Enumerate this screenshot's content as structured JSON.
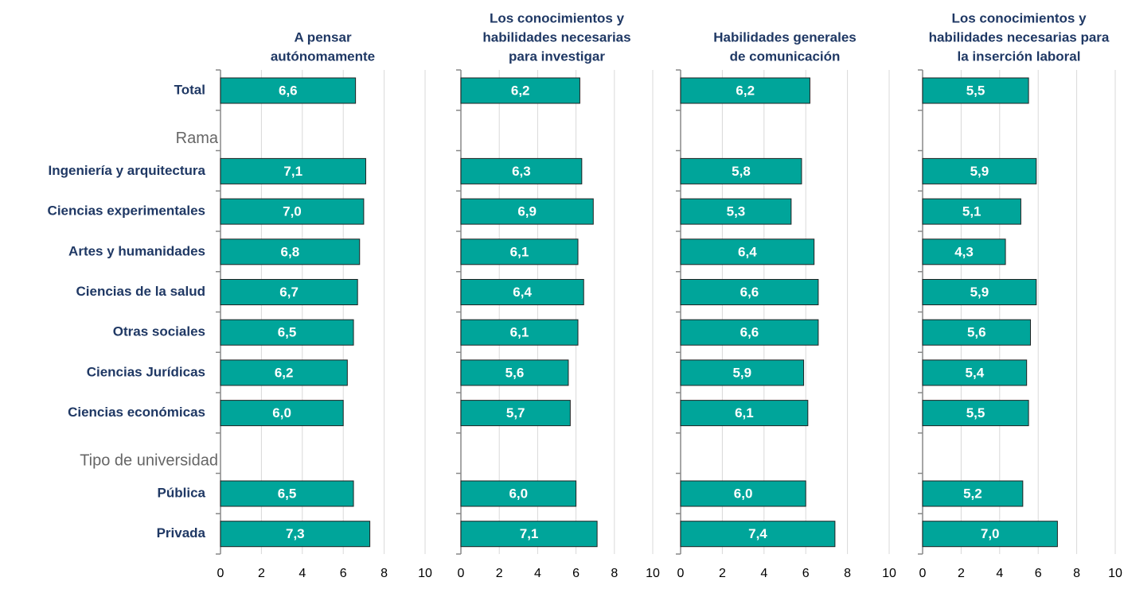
{
  "categories": [
    "Total",
    "Rama",
    "Ingeniería y arquitectura",
    "Ciencias experimentales",
    "Artes y humanidades",
    "Ciencias de la salud",
    "Otras sociales",
    "Ciencias Jurídicas",
    "Ciencias económicas",
    "Tipo de universidad",
    "Pública",
    "Privada"
  ],
  "chart_data": [
    {
      "type": "bar",
      "orientation": "horizontal",
      "title": [
        "A pensar",
        "autónomamente"
      ],
      "color": "#00a59a",
      "values": [
        6.6,
        null,
        7.1,
        7.0,
        6.8,
        6.7,
        6.5,
        6.2,
        6.0,
        null,
        6.5,
        7.3
      ],
      "value_labels": [
        "6,6",
        null,
        "7,1",
        "7,0",
        "6,8",
        "6,7",
        "6,5",
        "6,2",
        "6,0",
        null,
        "6,5",
        "7,3"
      ],
      "xlim": [
        0,
        10
      ],
      "xticks": [
        0,
        2,
        4,
        6,
        8,
        10
      ],
      "grid": true
    },
    {
      "type": "bar",
      "orientation": "horizontal",
      "title": [
        "Los conocimientos y",
        "habilidades necesarias",
        "para investigar"
      ],
      "color": "#00a59a",
      "values": [
        6.2,
        null,
        6.3,
        6.9,
        6.1,
        6.4,
        6.1,
        5.6,
        5.7,
        null,
        6.0,
        7.1
      ],
      "value_labels": [
        "6,2",
        null,
        "6,3",
        "6,9",
        "6,1",
        "6,4",
        "6,1",
        "5,6",
        "5,7",
        null,
        "6,0",
        "7,1"
      ],
      "xlim": [
        0,
        10
      ],
      "xticks": [
        0,
        2,
        4,
        6,
        8,
        10
      ],
      "grid": true
    },
    {
      "type": "bar",
      "orientation": "horizontal",
      "title": [
        "Habilidades generales",
        "de comunicación"
      ],
      "color": "#00a59a",
      "values": [
        6.2,
        null,
        5.8,
        5.3,
        6.4,
        6.6,
        6.6,
        5.9,
        6.1,
        null,
        6.0,
        7.4
      ],
      "value_labels": [
        "6,2",
        null,
        "5,8",
        "5,3",
        "6,4",
        "6,6",
        "6,6",
        "5,9",
        "6,1",
        null,
        "6,0",
        "7,4"
      ],
      "xlim": [
        0,
        10
      ],
      "xticks": [
        0,
        2,
        4,
        6,
        8,
        10
      ],
      "grid": true
    },
    {
      "type": "bar",
      "orientation": "horizontal",
      "title": [
        "Los conocimientos y",
        "habilidades necesarias para",
        "la inserción laboral"
      ],
      "color": "#00a59a",
      "values": [
        5.5,
        null,
        5.9,
        5.1,
        4.3,
        5.9,
        5.6,
        5.4,
        5.5,
        null,
        5.2,
        7.0
      ],
      "value_labels": [
        "5,5",
        null,
        "5,9",
        "5,1",
        "4,3",
        "5,9",
        "5,6",
        "5,4",
        "5,5",
        null,
        "5,2",
        "7,0"
      ],
      "xlim": [
        0,
        10
      ],
      "xticks": [
        0,
        2,
        4,
        6,
        8,
        10
      ],
      "grid": true
    }
  ]
}
